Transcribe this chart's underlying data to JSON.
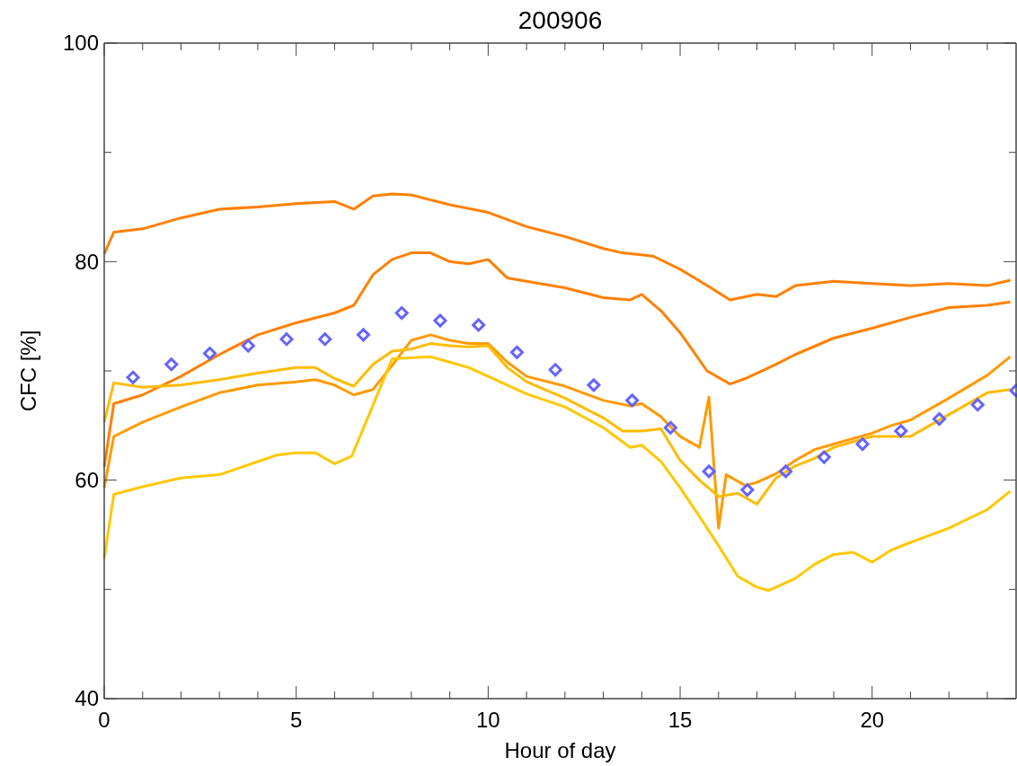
{
  "chart_data": {
    "type": "line",
    "title": "200906",
    "xlabel": "Hour of day",
    "ylabel": "CFC [%]",
    "xlim": [
      0,
      23.75
    ],
    "ylim": [
      40,
      100
    ],
    "xticks": [
      0,
      {
        "value": 1,
        "label": null
      },
      {
        "value": 2,
        "label": null
      },
      {
        "value": 3,
        "label": null
      },
      {
        "value": 4,
        "label": null
      },
      5,
      {
        "value": 6,
        "label": null
      },
      {
        "value": 7,
        "label": null
      },
      {
        "value": 8,
        "label": null
      },
      {
        "value": 9,
        "label": null
      },
      10,
      {
        "value": 11,
        "label": null
      },
      {
        "value": 12,
        "label": null
      },
      {
        "value": 13,
        "label": null
      },
      {
        "value": 14,
        "label": null
      },
      15,
      {
        "value": 16,
        "label": null
      },
      {
        "value": 17,
        "label": null
      },
      {
        "value": 18,
        "label": null
      },
      {
        "value": 19,
        "label": null
      },
      20,
      {
        "value": 21,
        "label": null
      },
      {
        "value": 22,
        "label": null
      },
      {
        "value": 23,
        "label": null
      }
    ],
    "yticks": [
      40,
      {
        "value": 50,
        "label": null
      },
      60,
      {
        "value": 70,
        "label": null
      },
      80,
      {
        "value": 90,
        "label": null
      },
      100
    ],
    "grid": false,
    "line_style": "solid",
    "series": [
      {
        "color": "#ff8000",
        "x": [
          0,
          0.25,
          1,
          2,
          3,
          4,
          5,
          6,
          6.5,
          7,
          7.5,
          8,
          9,
          10,
          11,
          12,
          13,
          13.5,
          14.3,
          15,
          15.8,
          16.3,
          17,
          17.5,
          18,
          19,
          20,
          21,
          22,
          23,
          23.6
        ],
        "values": [
          80.7,
          82.7,
          83,
          84,
          84.8,
          85,
          85.3,
          85.5,
          84.8,
          86,
          86.2,
          86.1,
          85.2,
          84.5,
          83.2,
          82.3,
          81.2,
          80.8,
          80.5,
          79.3,
          77.6,
          76.5,
          77,
          76.8,
          77.8,
          78.2,
          78,
          77.8,
          78,
          77.8,
          78.3
        ]
      },
      {
        "color": "#ff8000",
        "x": [
          0,
          0.25,
          1,
          2,
          3,
          4,
          5,
          6,
          6.5,
          7,
          7.5,
          8,
          8.5,
          9,
          9.5,
          10,
          10.5,
          11,
          12,
          13,
          13.7,
          14,
          14.5,
          15,
          15.7,
          16.3,
          16.7,
          17.5,
          18,
          19,
          20,
          21,
          22,
          23,
          23.6
        ],
        "values": [
          61.2,
          67,
          67.8,
          69.5,
          71.5,
          73.3,
          74.4,
          75.3,
          76,
          78.8,
          80.2,
          80.8,
          80.8,
          80,
          79.8,
          80.2,
          78.5,
          78.2,
          77.6,
          76.7,
          76.5,
          77,
          75.5,
          73.5,
          70,
          68.8,
          69.3,
          70.6,
          71.5,
          73,
          73.9,
          74.9,
          75.8,
          76,
          76.3
        ]
      },
      {
        "color": "#ff9a00",
        "x": [
          0,
          0.25,
          1,
          2,
          3,
          4,
          5,
          5.5,
          6,
          6.5,
          7,
          7.5,
          8,
          8.5,
          9,
          9.5,
          10,
          10.5,
          11,
          12,
          13,
          13.7,
          14,
          14.5,
          15,
          15.5,
          15.75,
          16,
          16.2,
          16.7,
          17,
          17.5,
          18,
          18.5,
          19,
          20,
          20.5,
          21,
          22,
          23,
          23.6
        ],
        "values": [
          59.3,
          64,
          65.3,
          66.7,
          68,
          68.7,
          69,
          69.2,
          68.7,
          67.8,
          68.3,
          70.5,
          72.8,
          73.3,
          72.8,
          72.5,
          72.5,
          70.8,
          69.5,
          68.6,
          67.3,
          66.8,
          67,
          65.8,
          64,
          63,
          67.6,
          55.6,
          60.5,
          59.5,
          59.8,
          60.6,
          61.8,
          62.8,
          63.3,
          64.3,
          65,
          65.5,
          67.5,
          69.6,
          71.3
        ]
      },
      {
        "color": "#ffbb00",
        "x": [
          0,
          0.25,
          1,
          2,
          3,
          4,
          5,
          5.5,
          6,
          6.5,
          7,
          7.5,
          8,
          8.5,
          9,
          9.5,
          10,
          10.5,
          11,
          12,
          13,
          13.5,
          14,
          14.5,
          15,
          15.5,
          16,
          16.5,
          17,
          17.5,
          18,
          18.5,
          19,
          20,
          21,
          21.5,
          22,
          23,
          23.6
        ],
        "values": [
          65.3,
          68.9,
          68.5,
          68.7,
          69.2,
          69.8,
          70.3,
          70.3,
          69.3,
          68.6,
          70.6,
          71.8,
          72,
          72.5,
          72.3,
          72.2,
          72.3,
          70.3,
          69,
          67.5,
          65.7,
          64.5,
          64.5,
          64.7,
          61.8,
          60,
          58.5,
          58.8,
          57.8,
          60.2,
          61.3,
          62,
          63,
          64,
          64,
          65,
          66,
          68,
          68.3
        ]
      },
      {
        "color": "#ffc800",
        "x": [
          0,
          0.25,
          1,
          2,
          3,
          4,
          4.5,
          5,
          5.5,
          6,
          6.45,
          7.5,
          8.5,
          9,
          9.5,
          10,
          11,
          12,
          13,
          13.7,
          14,
          14.5,
          15,
          15.5,
          16,
          16.5,
          17,
          17.3,
          18,
          18.5,
          19,
          19.5,
          20,
          20.5,
          21,
          22,
          23,
          23.6
        ],
        "values": [
          52.8,
          58.7,
          59.4,
          60.2,
          60.5,
          61.7,
          62.3,
          62.5,
          62.5,
          61.5,
          62.2,
          71.1,
          71.3,
          70.8,
          70.3,
          69.5,
          67.9,
          66.7,
          64.8,
          63,
          63.2,
          61.7,
          59.3,
          56.7,
          54,
          51.2,
          50.2,
          49.9,
          51,
          52.3,
          53.2,
          53.4,
          52.5,
          53.6,
          54.3,
          55.6,
          57.3,
          59
        ]
      },
      {
        "type": "scatter",
        "marker": "diamond",
        "color": "#6464ff",
        "x": [
          0.75,
          1.75,
          2.75,
          3.75,
          4.75,
          5.75,
          6.75,
          7.75,
          8.75,
          9.75,
          10.75,
          11.75,
          12.75,
          13.75,
          14.75,
          15.75,
          16.75,
          17.75,
          18.75,
          19.75,
          20.75,
          21.75,
          22.75,
          23.75
        ],
        "values": [
          69.4,
          70.6,
          71.6,
          72.3,
          72.9,
          72.9,
          73.3,
          75.3,
          74.6,
          74.2,
          71.7,
          70.1,
          68.7,
          67.3,
          64.8,
          60.8,
          59.1,
          60.8,
          62.1,
          63.3,
          64.5,
          65.6,
          66.9,
          68.2
        ]
      }
    ]
  }
}
